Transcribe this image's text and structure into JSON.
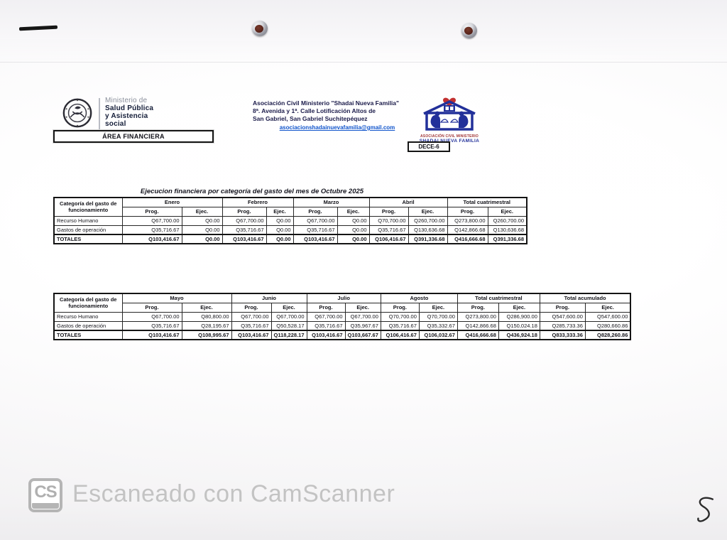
{
  "scan": {
    "pen_mark": "horizontal black ink stroke",
    "handwritten_mark": "S"
  },
  "header": {
    "ministry": {
      "line_light": "Ministerio de",
      "line_bold1": "Salud Pública",
      "line_bold2": "y Asistencia",
      "line_bold3": "social"
    },
    "area_label": "ÁREA FINANCIERA",
    "association": {
      "name": "Asociación Civil Ministerio \"Shadai Nueva Familia\"",
      "address_line1": "8ª. Avenida y 1ª. Calle  Lotificación Altos de",
      "address_line2": "San Gabriel, San Gabriel Suchitepéquez",
      "email": "asociacionshadainuevafamilia@gmail.com"
    },
    "shadai_logo": {
      "caption_line1": "ASOCIACIÓN CIVIL MINISTERIO",
      "caption_line2": "SHADAI NUEVA FAMILIA"
    },
    "form_code": "DECE-6"
  },
  "report": {
    "title": "Ejecucion financiera por categoría del gasto del mes de Octubre 2025"
  },
  "tables": [
    {
      "category_header": "Categoría del gasto de funcionamiento",
      "month_groups": [
        "Enero",
        "Febrero",
        "Marzo",
        "Abril",
        "Total cuatrimestral"
      ],
      "sub_headers": [
        "Prog.",
        "Ejec."
      ],
      "rows": [
        {
          "category": "Recurso Humano",
          "total": false,
          "values": [
            "Q67,700.00",
            "Q0.00",
            "Q67,700.00",
            "Q0.00",
            "Q67,700.00",
            "Q0.00",
            "Q70,700.00",
            "Q260,700.00",
            "Q273,800.00",
            "Q260,700.00"
          ]
        },
        {
          "category": "Gastos de operación",
          "total": false,
          "values": [
            "Q35,716.67",
            "Q0.00",
            "Q35,716.67",
            "Q0.00",
            "Q35,716.67",
            "Q0.00",
            "Q35,716.67",
            "Q130,636.68",
            "Q142,866.68",
            "Q130,636.68"
          ]
        },
        {
          "category": "TOTALES",
          "total": true,
          "values": [
            "Q103,416.67",
            "Q0.00",
            "Q103,416.67",
            "Q0.00",
            "Q103,416.67",
            "Q0.00",
            "Q106,416.67",
            "Q391,336.68",
            "Q416,666.68",
            "Q391,336.68"
          ]
        }
      ]
    },
    {
      "category_header": "Categoría del gasto de funcionamiento",
      "month_groups": [
        "Mayo",
        "Junio",
        "Julio",
        "Agosto",
        "Total cuatrimestral",
        "Total acumulado"
      ],
      "sub_headers": [
        "Prog.",
        "Ejec."
      ],
      "rows": [
        {
          "category": "Recurso Humano",
          "total": false,
          "values": [
            "Q67,700.00",
            "Q80,800.00",
            "Q67,700.00",
            "Q67,700.00",
            "Q67,700.00",
            "Q67,700.00",
            "Q70,700.00",
            "Q70,700.00",
            "Q273,800.00",
            "Q286,900.00",
            "Q547,600.00",
            "Q547,600.00"
          ]
        },
        {
          "category": "Gastos de operación",
          "total": false,
          "values": [
            "Q35,716.67",
            "Q28,195.67",
            "Q35,716.67",
            "Q50,528.17",
            "Q35,716.67",
            "Q35,967.67",
            "Q35,716.67",
            "Q35,332.67",
            "Q142,866.68",
            "Q150,024.18",
            "Q285,733.36",
            "Q280,660.86"
          ]
        },
        {
          "category": "TOTALES",
          "total": true,
          "values": [
            "Q103,416.67",
            "Q108,995.67",
            "Q103,416.67",
            "Q118,228.17",
            "Q103,416.67",
            "Q103,667.67",
            "Q106,416.67",
            "Q106,032.67",
            "Q416,666.68",
            "Q436,924.18",
            "Q833,333.36",
            "Q828,260.86"
          ]
        }
      ]
    }
  ],
  "footer": {
    "cs_badge": "CS",
    "watermark": "Escaneado con CamScanner"
  },
  "colors": {
    "link_blue": "#1155cc",
    "logo_blue": "#22309a",
    "heart_red": "#c23030",
    "watermark_gray": "#c3c3c3"
  }
}
